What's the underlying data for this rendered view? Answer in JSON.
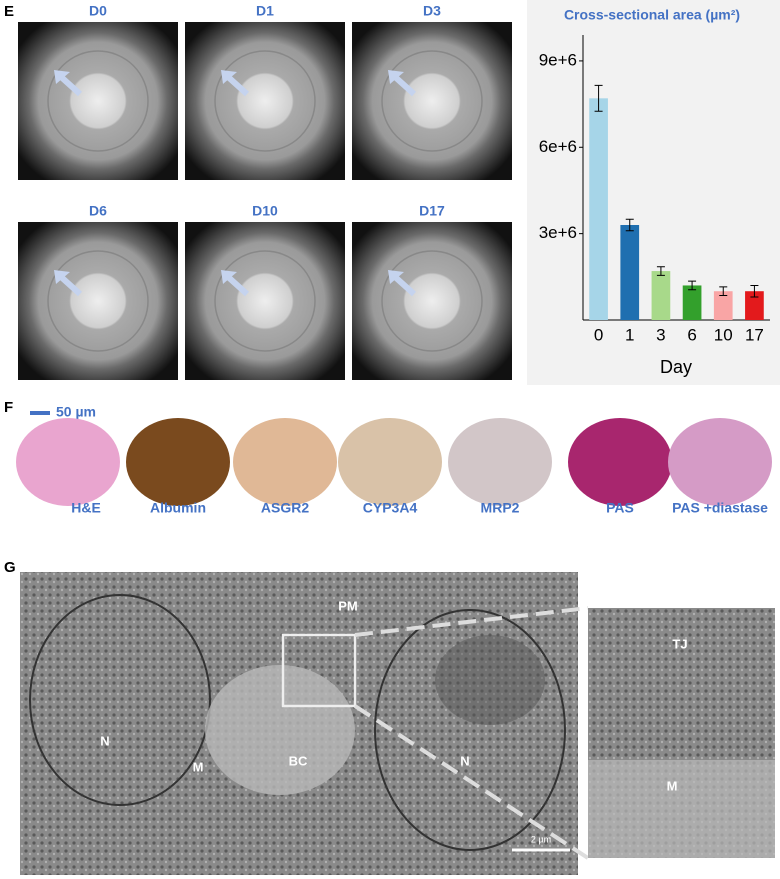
{
  "panels": {
    "E": {
      "label": "E",
      "wells": [
        "D0",
        "D1",
        "D3",
        "D6",
        "D10",
        "D17"
      ]
    },
    "F": {
      "label": "F",
      "scale": "50 µm",
      "stains": [
        "H&E",
        "Albumin",
        "ASGR2",
        "CYP3A4",
        "MRP2",
        "PAS",
        "PAS +diastase"
      ]
    },
    "G": {
      "label": "G",
      "annotations": [
        "PM",
        "N",
        "M",
        "BC",
        "N",
        "TJ",
        "M"
      ],
      "scale": "2 µm"
    }
  },
  "chart_data": {
    "type": "bar",
    "title": "Cross-sectional area (µm²)",
    "x_label": "Day",
    "categories": [
      "0",
      "1",
      "3",
      "6",
      "10",
      "17"
    ],
    "values": [
      7700000,
      3300000,
      1700000,
      1200000,
      1000000,
      1000000
    ],
    "errors": [
      450000,
      200000,
      150000,
      150000,
      150000,
      200000
    ],
    "colors": [
      "#a6d5e8",
      "#1f6fb0",
      "#a8d98a",
      "#33a02c",
      "#f9a5a5",
      "#e31a1c"
    ],
    "ylim": [
      0,
      9900000
    ],
    "yticks": [
      {
        "value": 3000000,
        "label": "3e+6"
      },
      {
        "value": 6000000,
        "label": "6e+6"
      },
      {
        "value": 9000000,
        "label": "9e+6"
      }
    ],
    "grid": false
  }
}
